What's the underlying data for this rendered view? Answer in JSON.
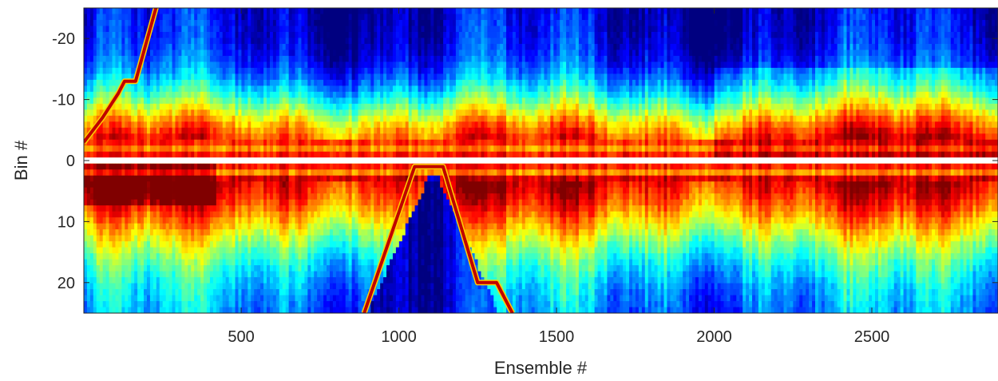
{
  "chart_data": {
    "type": "heatmap",
    "title": "",
    "xlabel": "Ensemble #",
    "ylabel": "Bin #",
    "xlim": [
      1,
      2900
    ],
    "ylim": [
      -25,
      25
    ],
    "y_reversed": true,
    "colormap": "jet",
    "x_ticks": [
      500,
      1000,
      1500,
      2000,
      2500
    ],
    "x_tick_labels": [
      "500",
      "1000",
      "1500",
      "2000",
      "2500"
    ],
    "y_ticks": [
      -20,
      -10,
      0,
      10,
      20
    ],
    "y_tick_labels": [
      "-20",
      "-10",
      "0",
      "10",
      "20"
    ],
    "blank_bin": 0,
    "features": [
      {
        "name": "high-intensity band",
        "bins": [
          -1,
          1
        ],
        "intensity": 0.85
      },
      {
        "name": "target track upper",
        "ensembles": [
          1,
          230
        ],
        "bins": [
          -2,
          -25
        ]
      },
      {
        "name": "target track lower",
        "ensembles": [
          890,
          1360
        ],
        "bins": [
          1,
          25
        ]
      }
    ]
  }
}
